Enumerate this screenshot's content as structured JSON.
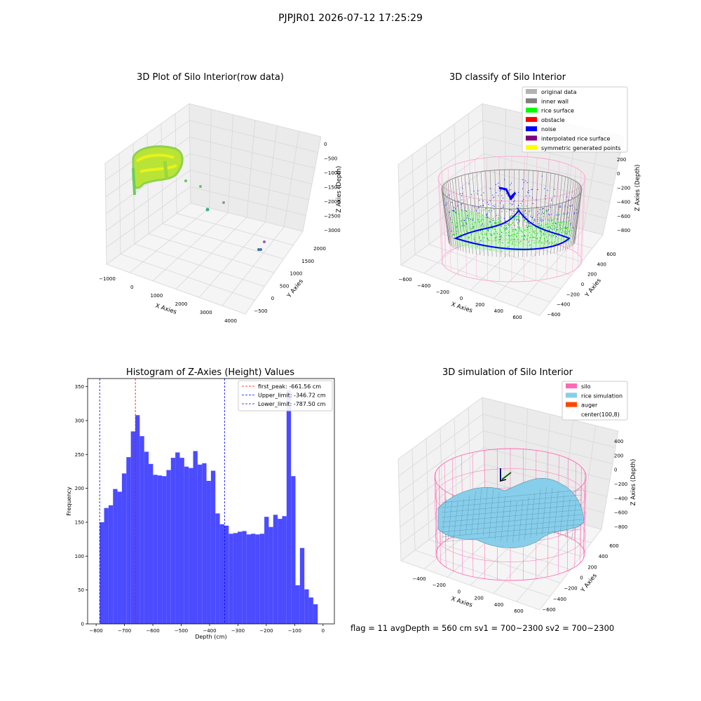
{
  "figure": {
    "title": "PJPJR01 2026-07-12 17:25:29",
    "footer": "flag = 11   avgDepth = 560 cm   sv1 = 700~2300   sv2 = 700~2300"
  },
  "colors": {
    "histogram_bar": "#4b4bff",
    "first_peak_line": "#ff0000",
    "limit_line": "#0000ff",
    "silo": "#ff69b4",
    "rice_simulation": "#87ceeb",
    "auger": "#ff4500",
    "original_data": "#b3b3b3",
    "inner_wall": "#808080",
    "rice_surface": "#00ff00",
    "obstacle": "#ff0000",
    "noise": "#0000ff",
    "interpolated_rice_surface": "#800080",
    "symmetric_generated_points": "#ffff00"
  },
  "chart_data": [
    {
      "type": "scatter",
      "projection": "3d",
      "title": "3D Plot of Silo Interior(row data)",
      "xlabel": "X Axies",
      "ylabel": "Y Axies",
      "zlabel": "Z Axies (Depth)",
      "x_ticks": [
        "−1000",
        "0",
        "1000",
        "2000",
        "3000",
        "4000"
      ],
      "y_ticks": [
        "−500",
        "0",
        "500",
        "1000",
        "1500",
        "2000"
      ],
      "z_ticks": [
        "0",
        "−500",
        "−1000",
        "−1500",
        "−2000",
        "−2500",
        "−3000"
      ],
      "colormap": "viridis"
    },
    {
      "type": "scatter",
      "projection": "3d",
      "title": "3D classify of Silo Interior",
      "xlabel": "X Axies",
      "ylabel": "Y Axies",
      "zlabel": "Z Axies (Depth)",
      "x_ticks": [
        "−600",
        "−400",
        "−200",
        "0",
        "200",
        "400",
        "600"
      ],
      "y_ticks": [
        "−600",
        "−400",
        "−200",
        "0",
        "200",
        "400",
        "600"
      ],
      "z_ticks": [
        "200",
        "0",
        "−200",
        "−400",
        "−600",
        "−800"
      ],
      "legend": [
        "original data",
        "inner wall",
        "rice surface",
        "obstacle",
        "noise",
        "interpolated rice surface",
        "symmetric generated points"
      ],
      "legend_position": "top-right"
    },
    {
      "type": "bar",
      "title": "Histogram of Z-Axies (Height) Values",
      "xlabel": "Depth (cm)",
      "ylabel": "Frequency",
      "xlim": [
        -830,
        40
      ],
      "ylim": [
        0,
        362
      ],
      "x_ticks": [
        -800,
        -700,
        -600,
        -500,
        -400,
        -300,
        -200,
        -100,
        0
      ],
      "x_tick_labels": [
        "−800",
        "−700",
        "−600",
        "−500",
        "−400",
        "−300",
        "−200",
        "−100",
        "0"
      ],
      "y_ticks": [
        0,
        50,
        100,
        150,
        200,
        250,
        300,
        350
      ],
      "bin_start": -787.5,
      "bin_width": 15.69,
      "values": [
        150,
        171,
        175,
        199,
        195,
        222,
        246,
        284,
        308,
        277,
        254,
        236,
        220,
        219,
        218,
        227,
        245,
        253,
        245,
        232,
        230,
        255,
        235,
        237,
        211,
        226,
        163,
        147,
        145,
        133,
        134,
        136,
        137,
        132,
        133,
        132,
        133,
        158,
        143,
        161,
        155,
        159,
        345,
        218,
        57,
        112,
        51,
        39,
        29
      ],
      "lines": [
        {
          "label": "first_peak: -661.56 cm",
          "x": -661.56,
          "color": "#ff0000"
        },
        {
          "label": "Upper_limit: -346.72 cm",
          "x": -346.72,
          "color": "#0000ff"
        },
        {
          "label": "Lower_limit: -787.50 cm",
          "x": -787.5,
          "color": "#0000ff"
        }
      ],
      "legend_position": "top-right"
    },
    {
      "type": "surface",
      "projection": "3d",
      "title": "3D simulation of Silo Interior",
      "xlabel": "X Axies",
      "ylabel": "Y Axies",
      "zlabel": "Z Axies (Depth)",
      "x_ticks": [
        "−400",
        "−200",
        "0",
        "200",
        "400",
        "600"
      ],
      "y_ticks": [
        "−600",
        "−400",
        "−200",
        "0",
        "200",
        "400",
        "600"
      ],
      "z_ticks": [
        "400",
        "200",
        "0",
        "−200",
        "−400",
        "−600",
        "−800"
      ],
      "legend": [
        "silo",
        "rice simulation",
        "auger",
        "center(100,8)"
      ],
      "legend_position": "top-right"
    }
  ]
}
